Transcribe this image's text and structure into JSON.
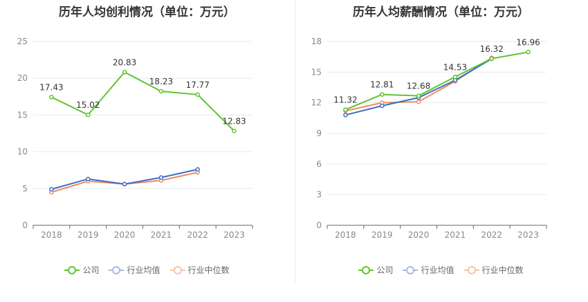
{
  "titles": {
    "left": "历年人均创利情况（单位：万元）",
    "right": "历年人均薪酬情况（单位：万元）"
  },
  "legend": {
    "items": [
      {
        "label": "公司",
        "color": "#5bc52f"
      },
      {
        "label": "行业均值",
        "color": "#3e6cc8"
      },
      {
        "label": "行业中位数",
        "color": "#ec8c5e"
      }
    ]
  },
  "chart_data": [
    {
      "type": "line",
      "title": "历年人均创利情况（单位：万元）",
      "categories": [
        "2018",
        "2019",
        "2020",
        "2021",
        "2022",
        "2023"
      ],
      "ylim": [
        0,
        25
      ],
      "yticks": [
        0,
        5,
        10,
        15,
        20,
        25
      ],
      "grid": true,
      "legend_position": "bottom",
      "series": [
        {
          "name": "公司",
          "color": "#5bc52f",
          "values": [
            17.43,
            15.02,
            20.83,
            18.23,
            17.77,
            12.83
          ],
          "labels": [
            "17.43",
            "15.02",
            "20.83",
            "18.23",
            "17.77",
            "12.83"
          ]
        },
        {
          "name": "行业均值",
          "color": "#3e6cc8",
          "values": [
            4.9,
            6.3,
            5.6,
            6.5,
            7.6,
            null
          ]
        },
        {
          "name": "行业中位数",
          "color": "#ec8c5e",
          "values": [
            4.5,
            6.0,
            5.6,
            6.1,
            7.2,
            null
          ]
        }
      ]
    },
    {
      "type": "line",
      "title": "历年人均薪酬情况（单位：万元）",
      "categories": [
        "2018",
        "2019",
        "2020",
        "2021",
        "2022",
        "2023"
      ],
      "ylim": [
        0,
        18
      ],
      "yticks": [
        0,
        3,
        6,
        9,
        12,
        15,
        18
      ],
      "grid": true,
      "legend_position": "bottom",
      "series": [
        {
          "name": "公司",
          "color": "#5bc52f",
          "values": [
            11.32,
            12.81,
            12.68,
            14.53,
            16.32,
            16.96
          ],
          "labels": [
            "11.32",
            "12.81",
            "12.68",
            "14.53",
            "16.32",
            "16.96"
          ]
        },
        {
          "name": "行业均值",
          "color": "#3e6cc8",
          "values": [
            10.8,
            11.7,
            12.5,
            14.2,
            16.3,
            null
          ]
        },
        {
          "name": "行业中位数",
          "color": "#ec8c5e",
          "values": [
            11.2,
            12.0,
            12.1,
            14.1,
            16.4,
            null
          ]
        }
      ]
    }
  ]
}
